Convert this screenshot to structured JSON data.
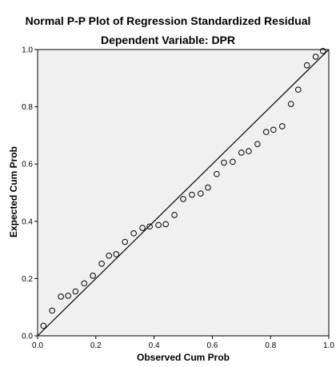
{
  "chart_data": {
    "type": "scatter",
    "title": "Normal P-P Plot of Regression Standardized Residual",
    "subtitle": "Dependent Variable: DPR",
    "xlabel": "Observed Cum Prob",
    "ylabel": "Expected Cum Prob",
    "xlim": [
      0,
      1
    ],
    "ylim": [
      0,
      1
    ],
    "xticks": [
      "0.0",
      "0.2",
      "0.4",
      "0.6",
      "0.8",
      "1.0"
    ],
    "yticks": [
      "0.0",
      "0.2",
      "0.4",
      "0.6",
      "0.8",
      "1.0"
    ],
    "grid": false,
    "reference_line": [
      [
        0,
        0
      ],
      [
        1,
        1
      ]
    ],
    "points": [
      {
        "x": 0.02,
        "y": 0.035
      },
      {
        "x": 0.05,
        "y": 0.088
      },
      {
        "x": 0.08,
        "y": 0.137
      },
      {
        "x": 0.105,
        "y": 0.14
      },
      {
        "x": 0.13,
        "y": 0.155
      },
      {
        "x": 0.16,
        "y": 0.183
      },
      {
        "x": 0.19,
        "y": 0.21
      },
      {
        "x": 0.22,
        "y": 0.252
      },
      {
        "x": 0.245,
        "y": 0.28
      },
      {
        "x": 0.27,
        "y": 0.285
      },
      {
        "x": 0.3,
        "y": 0.328
      },
      {
        "x": 0.33,
        "y": 0.358
      },
      {
        "x": 0.36,
        "y": 0.377
      },
      {
        "x": 0.385,
        "y": 0.382
      },
      {
        "x": 0.415,
        "y": 0.387
      },
      {
        "x": 0.44,
        "y": 0.39
      },
      {
        "x": 0.47,
        "y": 0.422
      },
      {
        "x": 0.5,
        "y": 0.478
      },
      {
        "x": 0.53,
        "y": 0.493
      },
      {
        "x": 0.56,
        "y": 0.497
      },
      {
        "x": 0.585,
        "y": 0.518
      },
      {
        "x": 0.615,
        "y": 0.565
      },
      {
        "x": 0.64,
        "y": 0.605
      },
      {
        "x": 0.67,
        "y": 0.608
      },
      {
        "x": 0.7,
        "y": 0.64
      },
      {
        "x": 0.725,
        "y": 0.645
      },
      {
        "x": 0.755,
        "y": 0.67
      },
      {
        "x": 0.785,
        "y": 0.712
      },
      {
        "x": 0.81,
        "y": 0.72
      },
      {
        "x": 0.84,
        "y": 0.732
      },
      {
        "x": 0.87,
        "y": 0.81
      },
      {
        "x": 0.895,
        "y": 0.86
      },
      {
        "x": 0.925,
        "y": 0.945
      },
      {
        "x": 0.955,
        "y": 0.975
      },
      {
        "x": 0.98,
        "y": 0.995
      }
    ],
    "colors": {
      "plot_background": "#f0f0f0",
      "marker_stroke": "#000000",
      "line": "#000000"
    }
  }
}
